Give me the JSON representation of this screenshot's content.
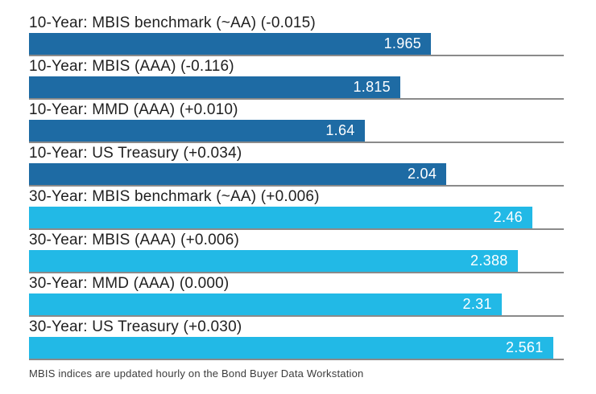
{
  "colors": {
    "ten_year": "#1e6ba4",
    "thirty_year": "#22b9e6",
    "divider": "#8a8a8a",
    "label_text": "#1f1f1f",
    "value_text": "#ffffff",
    "background": "#ffffff"
  },
  "chart_data": {
    "type": "bar",
    "orientation": "horizontal",
    "title": "",
    "xlabel": "",
    "ylabel": "",
    "xlim": [
      0,
      2.614
    ],
    "grid": false,
    "legend": false,
    "bars": [
      {
        "label": "10-Year: MBIS benchmark (~AA) (-0.015)",
        "series": "10-Year",
        "name": "MBIS benchmark (~AA)",
        "change": "-0.015",
        "value": 1.965,
        "value_label": "1.965",
        "group": "ten_year"
      },
      {
        "label": "10-Year: MBIS (AAA) (-0.116)",
        "series": "10-Year",
        "name": "MBIS (AAA)",
        "change": "-0.116",
        "value": 1.815,
        "value_label": "1.815",
        "group": "ten_year"
      },
      {
        "label": "10-Year: MMD (AAA) (+0.010)",
        "series": "10-Year",
        "name": "MMD (AAA)",
        "change": "+0.010",
        "value": 1.64,
        "value_label": "1.64",
        "group": "ten_year"
      },
      {
        "label": "10-Year: US Treasury (+0.034)",
        "series": "10-Year",
        "name": "US Treasury",
        "change": "+0.034",
        "value": 2.04,
        "value_label": "2.04",
        "group": "ten_year"
      },
      {
        "label": "30-Year: MBIS benchmark (~AA) (+0.006)",
        "series": "30-Year",
        "name": "MBIS benchmark (~AA)",
        "change": "+0.006",
        "value": 2.46,
        "value_label": "2.46",
        "group": "thirty_year"
      },
      {
        "label": "30-Year: MBIS (AAA) (+0.006)",
        "series": "30-Year",
        "name": "MBIS (AAA)",
        "change": "+0.006",
        "value": 2.388,
        "value_label": "2.388",
        "group": "thirty_year"
      },
      {
        "label": "30-Year: MMD (AAA) (0.000)",
        "series": "30-Year",
        "name": "MMD (AAA)",
        "change": "0.000",
        "value": 2.31,
        "value_label": "2.31",
        "group": "thirty_year"
      },
      {
        "label": "30-Year: US Treasury (+0.030)",
        "series": "30-Year",
        "name": "US Treasury",
        "change": "+0.030",
        "value": 2.561,
        "value_label": "2.561",
        "group": "thirty_year"
      }
    ],
    "footnote": "MBIS indices are updated hourly on the Bond Buyer Data Workstation"
  }
}
